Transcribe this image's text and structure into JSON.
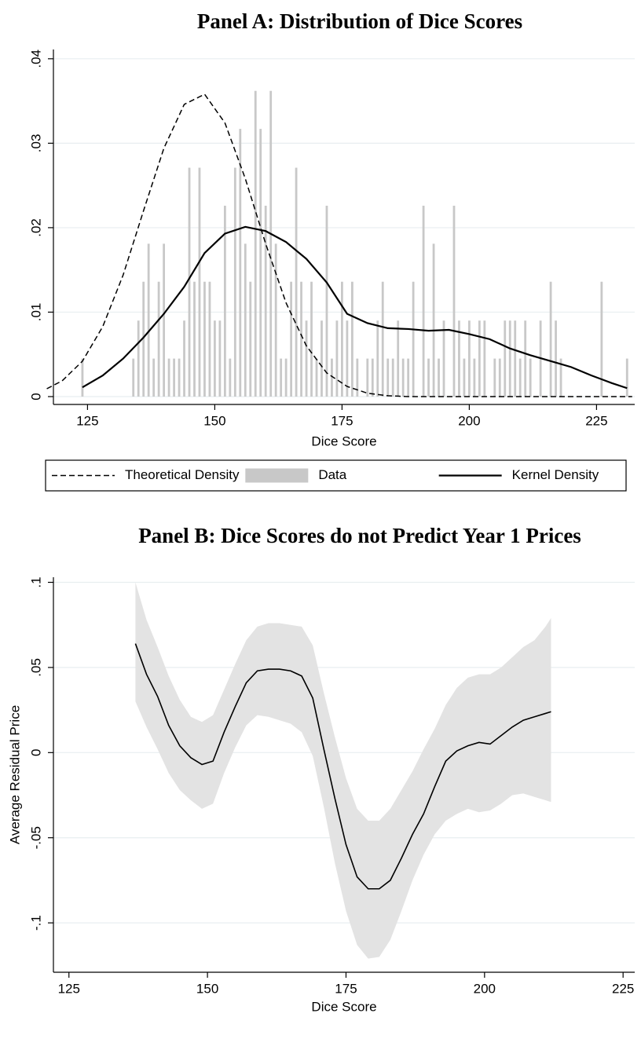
{
  "chart_data": [
    {
      "type": "line",
      "title": "Panel A: Distribution of Dice Scores",
      "x_label": "Dice Score",
      "xlim": [
        118.3,
        232.5
      ],
      "ylim": [
        -0.00093,
        0.0411
      ],
      "xticks": [
        125,
        150,
        175,
        200,
        225
      ],
      "yticks": [
        0,
        {
          "value": 0.01,
          "label": ".01"
        },
        {
          "value": 0.02,
          "label": ".02"
        },
        {
          "value": 0.03,
          "label": ".03"
        },
        {
          "value": 0.04,
          "label": ".04"
        }
      ],
      "grid": true,
      "legend": "bottom",
      "series": [
        {
          "name": "Theoretical Density",
          "color": "#000000",
          "dash": "dashed",
          "x": [
            117,
            120,
            124,
            128,
            132,
            136,
            140,
            144,
            148,
            152,
            156,
            160,
            164,
            168,
            172,
            176,
            180,
            184,
            188,
            200,
            216,
            232
          ],
          "values": [
            0.00093,
            0.00186,
            0.00419,
            0.0083,
            0.0144,
            0.022,
            0.0294,
            0.0346,
            0.0358,
            0.0324,
            0.0258,
            0.0181,
            0.0111,
            0.006,
            0.0028,
            0.0012,
            0.0004,
            0.0001,
            0,
            0,
            0,
            0
          ]
        },
        {
          "name": "Data",
          "type": "bar",
          "color": "#c8c8c8",
          "x": [
            124,
            134,
            135,
            136,
            137,
            138,
            139,
            140,
            141,
            142,
            143,
            144,
            145,
            146,
            147,
            148,
            149,
            150,
            151,
            152,
            153,
            154,
            155,
            156,
            157,
            158,
            159,
            160,
            161,
            162,
            163,
            164,
            165,
            166,
            167,
            168,
            169,
            170,
            171,
            172,
            173,
            174,
            175,
            176,
            177,
            178,
            180,
            181,
            182,
            183,
            184,
            185,
            186,
            187,
            188,
            189,
            191,
            192,
            193,
            194,
            195,
            197,
            198,
            199,
            200,
            201,
            202,
            203,
            205,
            206,
            207,
            208,
            209,
            210,
            211,
            212,
            214,
            216,
            217,
            218,
            226,
            231
          ],
          "values": [
            0.0045,
            0.0045,
            0.009,
            0.0136,
            0.0181,
            0.0045,
            0.0136,
            0.0181,
            0.0045,
            0.0045,
            0.0045,
            0.009,
            0.0271,
            0.0136,
            0.0271,
            0.0136,
            0.0136,
            0.009,
            0.009,
            0.0226,
            0.0045,
            0.0271,
            0.0317,
            0.0181,
            0.0136,
            0.0362,
            0.0317,
            0.0226,
            0.0362,
            0.0181,
            0.0045,
            0.0045,
            0.0136,
            0.0271,
            0.0136,
            0.009,
            0.0136,
            0.0045,
            0.009,
            0.0226,
            0.0045,
            0.009,
            0.0136,
            0.009,
            0.0136,
            0.0045,
            0.0045,
            0.0045,
            0.009,
            0.0136,
            0.0045,
            0.0045,
            0.009,
            0.0045,
            0.0045,
            0.0136,
            0.0226,
            0.0045,
            0.0181,
            0.0045,
            0.009,
            0.0226,
            0.009,
            0.0045,
            0.009,
            0.0045,
            0.009,
            0.009,
            0.0045,
            0.0045,
            0.009,
            0.009,
            0.009,
            0.0045,
            0.009,
            0.0045,
            0.009,
            0.0136,
            0.009,
            0.0045,
            0.0136,
            0.0045
          ]
        },
        {
          "name": "Kernel Density",
          "color": "#000000",
          "x": [
            124,
            128,
            132,
            136,
            140,
            144,
            148,
            152,
            156,
            160,
            164,
            168,
            172,
            176,
            180,
            184,
            188,
            192,
            196,
            200,
            204,
            208,
            212,
            216,
            220,
            224,
            228,
            231
          ],
          "values": [
            0.0011,
            0.0025,
            0.0045,
            0.007,
            0.0098,
            0.013,
            0.017,
            0.0193,
            0.0201,
            0.0196,
            0.0183,
            0.0163,
            0.0135,
            0.0098,
            0.0087,
            0.0081,
            0.008,
            0.0078,
            0.0079,
            0.0074,
            0.0068,
            0.0057,
            0.0049,
            0.0042,
            0.0035,
            0.0025,
            0.0016,
            0.001
          ]
        }
      ]
    },
    {
      "type": "line",
      "title": "Panel B: Dice Scores do not Predict Year 1 Prices",
      "x_label": "Dice Score",
      "y_label": "Average Residual Price",
      "xlim": [
        122.2,
        227.1
      ],
      "ylim": [
        -0.129,
        0.103
      ],
      "xticks": [
        125,
        150,
        175,
        200,
        225
      ],
      "yticks": [
        {
          "value": -0.1,
          "label": "-.1"
        },
        {
          "value": -0.05,
          "label": "-.05"
        },
        0,
        {
          "value": 0.05,
          "label": ".05"
        },
        {
          "value": 0.1,
          "label": ".1"
        }
      ],
      "grid": true,
      "series": [
        {
          "color": "#000000",
          "band_color": "#e3e3e3",
          "x": [
            137,
            139,
            141,
            143,
            145,
            147,
            149,
            151,
            153,
            155,
            157,
            159,
            161,
            163,
            165,
            167,
            169,
            171,
            173,
            175,
            177,
            179,
            181,
            183,
            185,
            187,
            189,
            191,
            193,
            195,
            197,
            199,
            201,
            203,
            205,
            207,
            209,
            211,
            212
          ],
          "values": [
            0.064,
            0.046,
            0.033,
            0.016,
            0.004,
            -0.003,
            -0.007,
            -0.005,
            0.012,
            0.027,
            0.041,
            0.048,
            0.049,
            0.049,
            0.048,
            0.045,
            0.032,
            0.002,
            -0.027,
            -0.054,
            -0.073,
            -0.08,
            -0.08,
            -0.075,
            -0.062,
            -0.048,
            -0.036,
            -0.02,
            -0.005,
            0.001,
            0.004,
            0.006,
            0.005,
            0.01,
            0.015,
            0.019,
            0.021,
            0.023,
            0.024
          ],
          "lower": [
            0.03,
            0.015,
            0.002,
            -0.012,
            -0.022,
            -0.028,
            -0.033,
            -0.03,
            -0.012,
            0.003,
            0.016,
            0.022,
            0.021,
            0.019,
            0.017,
            0.012,
            -0.002,
            -0.032,
            -0.065,
            -0.093,
            -0.113,
            -0.121,
            -0.12,
            -0.11,
            -0.093,
            -0.075,
            -0.06,
            -0.048,
            -0.04,
            -0.036,
            -0.033,
            -0.035,
            -0.034,
            -0.03,
            -0.025,
            -0.024,
            -0.026,
            -0.028,
            -0.029
          ],
          "upper": [
            0.1,
            0.078,
            0.062,
            0.045,
            0.031,
            0.021,
            0.018,
            0.022,
            0.037,
            0.052,
            0.066,
            0.074,
            0.076,
            0.076,
            0.075,
            0.074,
            0.063,
            0.035,
            0.009,
            -0.015,
            -0.033,
            -0.04,
            -0.04,
            -0.033,
            -0.022,
            -0.011,
            0.002,
            0.014,
            0.028,
            0.038,
            0.044,
            0.046,
            0.046,
            0.05,
            0.056,
            0.062,
            0.066,
            0.074,
            0.079
          ]
        }
      ]
    }
  ]
}
